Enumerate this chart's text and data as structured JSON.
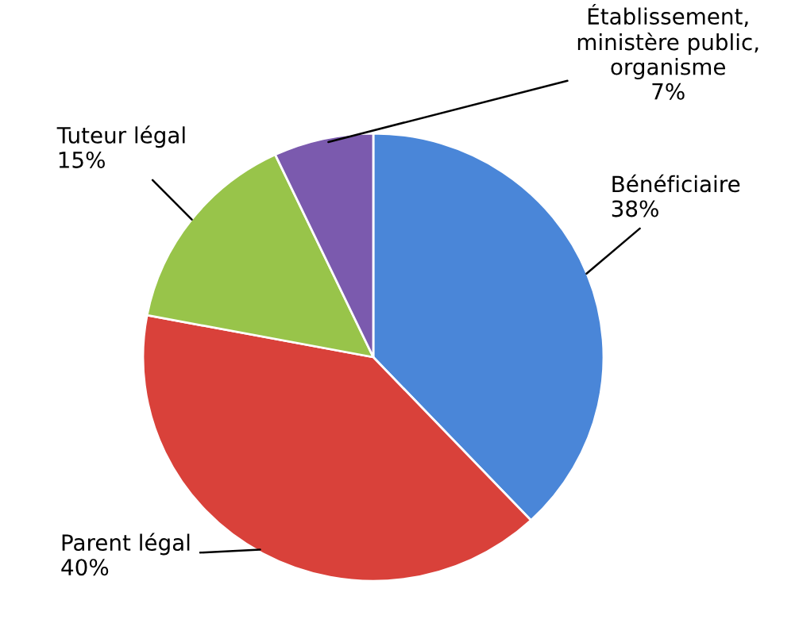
{
  "chart_data": {
    "type": "pie",
    "categories": [
      "Bénéficiaire",
      "Parent légal",
      "Tuteur légal",
      "Établissement,\nministère public,\norganisme"
    ],
    "values": [
      38,
      40,
      15,
      7
    ],
    "colors": [
      "#4a86d8",
      "#d9413a",
      "#98c44a",
      "#7b5aae"
    ],
    "value_labels": [
      "38%",
      "40%",
      "15%",
      "7%"
    ],
    "legend": false
  }
}
